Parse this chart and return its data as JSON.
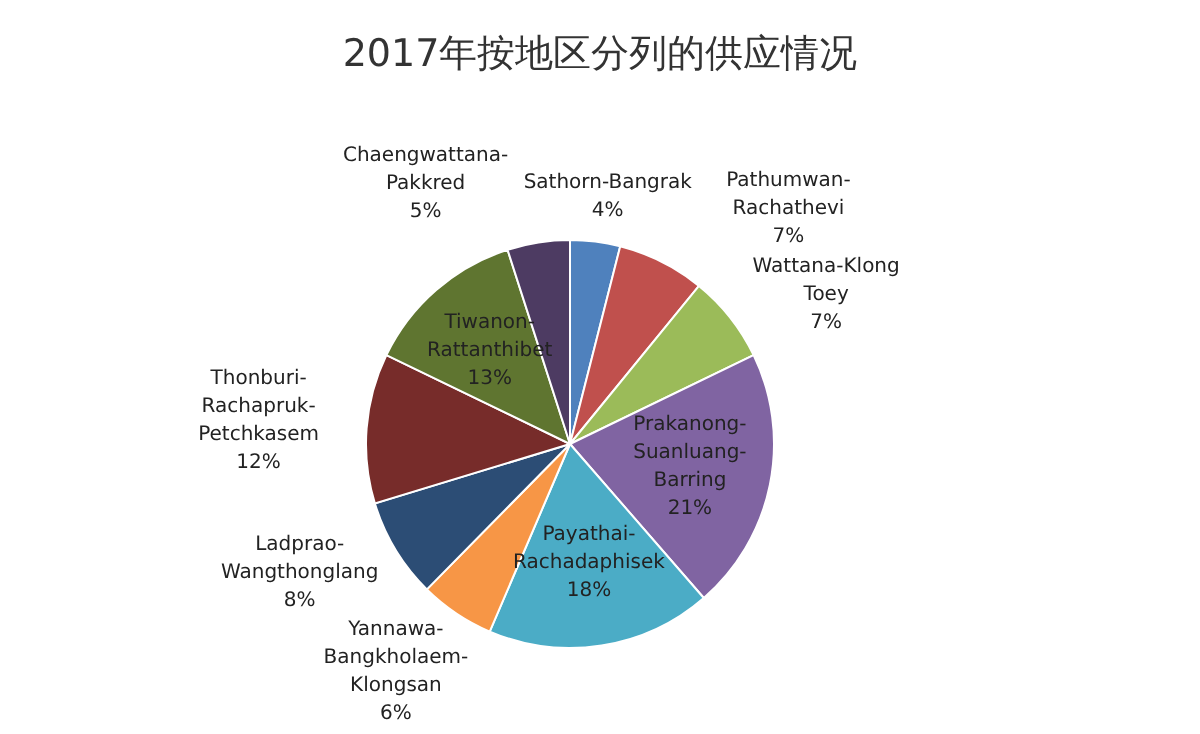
{
  "chart_data": {
    "type": "pie",
    "title": "2017年按地区分列的供应情况",
    "categories": [
      "Sathorn-Bangrak",
      "Pathumwan-Rachathevi",
      "Wattana-Klong Toey",
      "Prakanong-Suanluang-Barring",
      "Payathai-Rachadaphisek",
      "Yannawa-Bangkholaem-Klongsan",
      "Ladprao-Wangthonglang",
      "Thonburi-Rachapruk-Petchkasem",
      "Tiwanon-Rattanthibet",
      "Chaengwattana-Pakkred"
    ],
    "values": [
      4,
      7,
      7,
      21,
      18,
      6,
      8,
      12,
      13,
      5
    ],
    "value_labels": [
      "4%",
      "7%",
      "7%",
      "21%",
      "18%",
      "6%",
      "8%",
      "12%",
      "13%",
      "5%"
    ],
    "colors": [
      "#4f81bd",
      "#c0504d",
      "#9bbb59",
      "#8064a2",
      "#4bacc6",
      "#f79646",
      "#2c4d75",
      "#772c2a",
      "#5f7530",
      "#4d3b62"
    ]
  }
}
